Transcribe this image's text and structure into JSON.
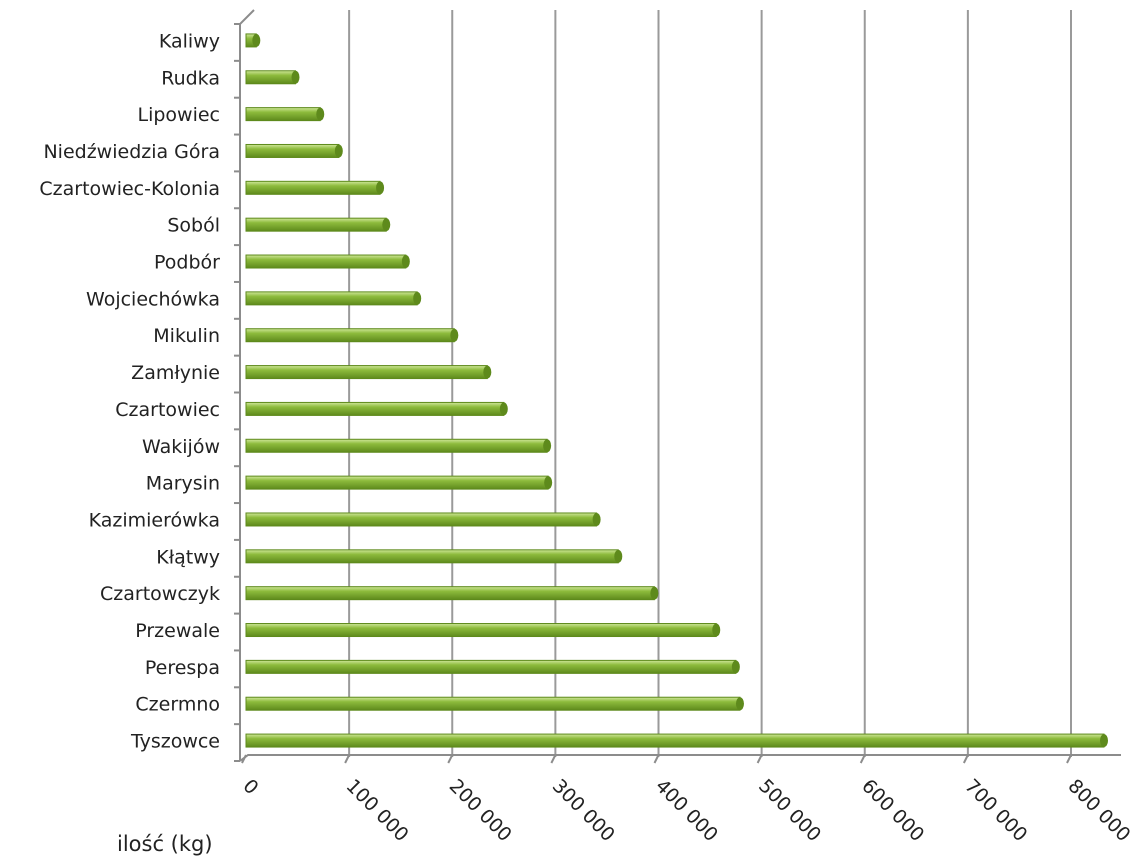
{
  "chart_data": {
    "type": "bar",
    "orientation": "horizontal",
    "title": "",
    "xlabel": "ilość (kg)",
    "ylabel": "",
    "xlim": [
      0,
      800000
    ],
    "grid": "vertical major gridlines",
    "legend": "none",
    "bar_color": "#8dbb3c",
    "bar_highlight": "#cfe79a",
    "bar_shadow": "#5e8a1c",
    "categories": [
      "Kaliwy",
      "Rudka",
      "Lipowiec",
      "Niedźwiedzia Góra",
      "Czartowiec-Kolonia",
      "Soból",
      "Podbór",
      "Wojciechówka",
      "Mikulin",
      "Zamłynie",
      "Czartowiec",
      "Wakijów",
      "Marysin",
      "Kazimierówka",
      "Kłątwy",
      "Czartowczyk",
      "Przewale",
      "Perespa",
      "Czermno",
      "Tyszowce"
    ],
    "values": [
      10000,
      48000,
      72000,
      90000,
      130000,
      136000,
      155000,
      166000,
      202000,
      234000,
      250000,
      292000,
      293000,
      340000,
      361000,
      396000,
      456000,
      475000,
      479000,
      832000
    ],
    "tick_values": [
      0,
      100000,
      200000,
      300000,
      400000,
      500000,
      600000,
      700000,
      800000
    ],
    "tick_labels": [
      "0",
      "100 000",
      "200 000",
      "300 000",
      "400 000",
      "500 000",
      "600 000",
      "700 000",
      "800 000"
    ]
  }
}
